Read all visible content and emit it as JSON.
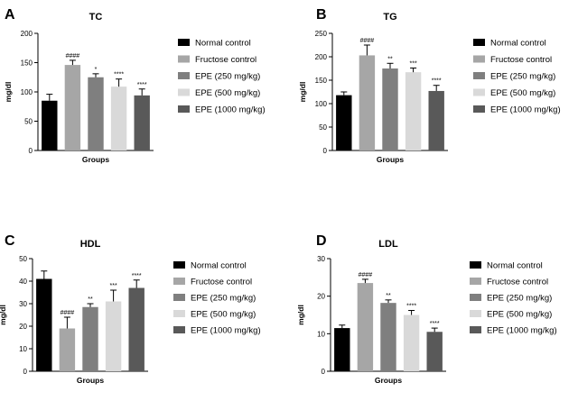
{
  "chart_data": [
    {
      "panel": "A",
      "title": "TC",
      "type": "bar",
      "ylabel": "mg/dl",
      "xlabel": "Groups",
      "ylim": [
        0,
        200
      ],
      "yticks": [
        0,
        50,
        100,
        150,
        200
      ],
      "categories": [
        "Normal control",
        "Fructose control",
        "EPE (250 mg/kg)",
        "EPE (500 mg/kg)",
        "EPE (1000 mg/kg)"
      ],
      "values": [
        85,
        146,
        125,
        109,
        94
      ],
      "errors": [
        11,
        8,
        6,
        13,
        11
      ],
      "significance": [
        "",
        "####",
        "*",
        "****",
        "****"
      ]
    },
    {
      "panel": "B",
      "title": "TG",
      "type": "bar",
      "ylabel": "mg/dl",
      "xlabel": "Groups",
      "ylim": [
        0,
        250
      ],
      "yticks": [
        0,
        50,
        100,
        150,
        200,
        250
      ],
      "categories": [
        "Normal control",
        "Fructose control",
        "EPE (250 mg/kg)",
        "EPE (500 mg/kg)",
        "EPE (1000 mg/kg)"
      ],
      "values": [
        118,
        203,
        175,
        167,
        127
      ],
      "errors": [
        7,
        22,
        11,
        9,
        12
      ],
      "significance": [
        "",
        "####",
        "**",
        "***",
        "****"
      ]
    },
    {
      "panel": "C",
      "title": "HDL",
      "type": "bar",
      "ylabel": "mg/dl",
      "xlabel": "Groups",
      "ylim": [
        0,
        50
      ],
      "yticks": [
        0,
        10,
        20,
        30,
        40,
        50
      ],
      "categories": [
        "Normal control",
        "Fructose control",
        "EPE (250 mg/kg)",
        "EPE (500 mg/kg)",
        "EPE (1000 mg/kg)"
      ],
      "values": [
        41,
        19,
        28.5,
        31,
        37
      ],
      "errors": [
        3.5,
        5,
        1.5,
        5,
        3.5
      ],
      "significance": [
        "",
        "####",
        "**",
        "***",
        "****"
      ]
    },
    {
      "panel": "D",
      "title": "LDL",
      "type": "bar",
      "ylabel": "mg/dl",
      "xlabel": "Groups",
      "ylim": [
        0,
        30
      ],
      "yticks": [
        0,
        10,
        20,
        30
      ],
      "categories": [
        "Normal control",
        "Fructose control",
        "EPE (250 mg/kg)",
        "EPE (500 mg/kg)",
        "EPE (1000 mg/kg)"
      ],
      "values": [
        11.5,
        23.5,
        18.2,
        15,
        10.5
      ],
      "errors": [
        0.8,
        1,
        0.8,
        1.2,
        1
      ],
      "significance": [
        "",
        "####",
        "**",
        "****",
        "****"
      ]
    }
  ],
  "legend": {
    "entries": [
      "Normal control",
      "Fructose control",
      "EPE (250 mg/kg)",
      "EPE (500 mg/kg)",
      "EPE (1000 mg/kg)"
    ],
    "colors": [
      "#000000",
      "#a6a6a6",
      "#7f7f7f",
      "#d9d9d9",
      "#595959"
    ]
  }
}
